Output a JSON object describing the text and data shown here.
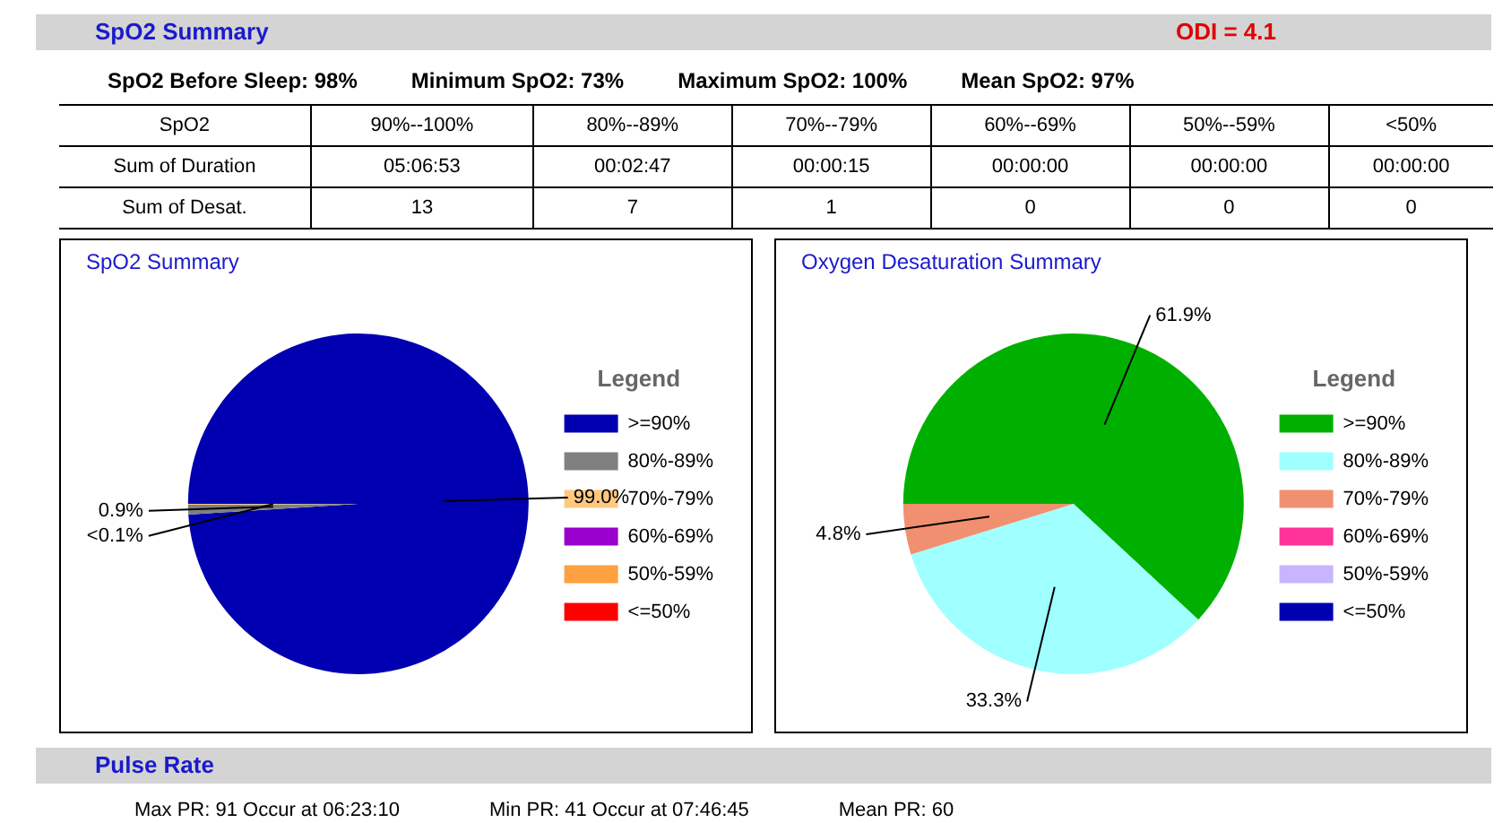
{
  "chart_data": [
    {
      "type": "other",
      "title": "SpO2 Summary",
      "annotations": [
        "ODI =  4.1",
        "SpO2 Before Sleep:  98%",
        "Minimum SpO2:  73%",
        "Maximum SpO2:  100%",
        "Mean SpO2:  97%",
        "SpO2",
        "90%--100%",
        "80%--89%",
        "70%--79%",
        "60%--69%",
        "50%--59%",
        "<50%",
        "Sum of Duration",
        "05:06:53",
        "00:02:47",
        "00:00:15",
        "00:00:00",
        "00:00:00",
        "00:00:00",
        "Sum of Desat.",
        "13",
        "7",
        "1",
        "0",
        "0",
        "0"
      ]
    },
    {
      "type": "pie",
      "title": "SpO2 Summary",
      "legend_title": "Legend",
      "legend": "right",
      "categories": [
        ">=90%",
        "80%-89%",
        "70%-79%",
        "60%-69%",
        "50%-59%",
        "<=50%"
      ],
      "values": [
        99.0,
        0.92,
        0.08,
        0,
        0,
        0
      ],
      "value_labels": [
        "99.0%",
        "0.9%",
        "<0.1%",
        null,
        null,
        null
      ],
      "colors": [
        "#0000b0",
        "#808080",
        "#ffc880",
        "#9900cc",
        "#ffa040",
        "#ff0000"
      ]
    },
    {
      "type": "pie",
      "title": "Oxygen Desaturation Summary",
      "legend_title": "Legend",
      "legend": "right",
      "categories": [
        ">=90%",
        "80%-89%",
        "70%-79%",
        "60%-69%",
        "50%-59%",
        "<=50%"
      ],
      "values": [
        61.9,
        33.3,
        4.8,
        0,
        0,
        0
      ],
      "value_labels": [
        "61.9%",
        "33.3%",
        "4.8%",
        null,
        null,
        null
      ],
      "colors": [
        "#00b000",
        "#a0ffff",
        "#f09070",
        "#ff3399",
        "#c8b4ff",
        "#0000b0"
      ]
    },
    {
      "type": "other",
      "title": "Pulse Rate",
      "annotations": [
        "Max PR: 91   Occur at 06:23:10",
        "Min PR: 41   Occur at 07:46:45",
        "Mean PR: 60"
      ]
    }
  ]
}
